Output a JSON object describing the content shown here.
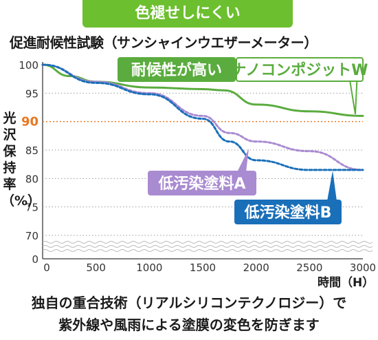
{
  "banner": "色褪せしにくい",
  "caption_lines": [
    "独自の重合技術（リアルシリコンテクノロジー）で",
    "紫外線や風雨による塗膜の変色を防ぎます"
  ],
  "colors": {
    "banner": "#6cbf2e",
    "nano": "#5aac3e",
    "lowA": "#a98bd1",
    "lowB": "#1a6fb9",
    "ref": "#e87722"
  },
  "chart_data": {
    "type": "line",
    "title": "促進耐候性試験（サンシャインウエザーメーター）",
    "xlabel": "時間（H）",
    "ylabel": "光沢保持率（%）",
    "xlim": [
      0,
      3000
    ],
    "x_ticks": [
      "0",
      "500",
      "1000",
      "1500",
      "2000",
      "2500",
      "3000"
    ],
    "y_ticks": [
      "100",
      "95",
      "90",
      "85",
      "80",
      "75",
      "70",
      "0"
    ],
    "y_axis_break": true,
    "reference_line": {
      "y": 90,
      "label": "90"
    },
    "grid": "horizontal-dotted",
    "series": [
      {
        "name": "耐候性が高い ナノコンポジットW",
        "label_parts": [
          "耐候性が高い",
          "ナノコンポジットW"
        ],
        "style": "solid",
        "x": [
          0,
          250,
          500,
          1000,
          1500,
          1700,
          2000,
          2500,
          3000
        ],
        "y": [
          100,
          98,
          97,
          96,
          95.7,
          95.5,
          93,
          91.8,
          91
        ]
      },
      {
        "name": "低汚染塗料A",
        "style": "dotted",
        "x": [
          0,
          500,
          1000,
          1500,
          1750,
          2000,
          2500,
          3000
        ],
        "y": [
          100,
          97,
          95,
          91,
          88,
          86.5,
          84.8,
          81.5
        ]
      },
      {
        "name": "低汚染塗料B",
        "style": "dotted",
        "x": [
          0,
          500,
          1000,
          1500,
          1750,
          2000,
          2500,
          3000
        ],
        "y": [
          100,
          96.8,
          94.8,
          90.5,
          86.5,
          83.2,
          81.5,
          81.5
        ]
      }
    ]
  }
}
